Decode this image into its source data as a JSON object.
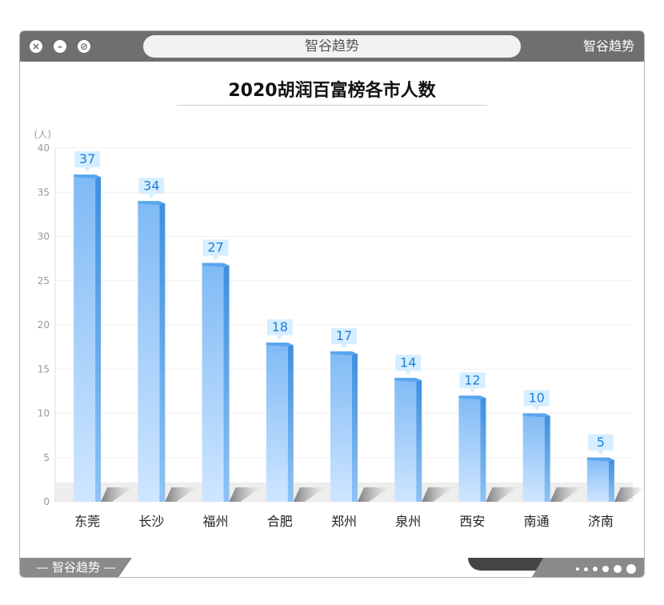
{
  "window": {
    "address_text": "智谷趋势",
    "brand_top_right": "智谷趋势",
    "footer_brand": "— 智谷趋势 —"
  },
  "colors": {
    "bar_light": "#cfe6ff",
    "bar_mid": "#7fbaf5",
    "bar_dark": "#3e8fe0",
    "label_bg": "#d6eeff",
    "label_text": "#1f7fd8"
  },
  "chart_data": {
    "type": "bar",
    "title": "2020胡润百富榜各市人数",
    "unit_label": "(人)",
    "categories": [
      "东莞",
      "长沙",
      "福州",
      "合肥",
      "郑州",
      "泉州",
      "西安",
      "南通",
      "济南"
    ],
    "values": [
      37,
      34,
      27,
      18,
      17,
      14,
      12,
      10,
      5
    ],
    "ylim": [
      0,
      40
    ],
    "yticks": [
      0,
      5,
      10,
      15,
      20,
      25,
      30,
      35,
      40
    ],
    "grid": true,
    "legend": "none"
  }
}
